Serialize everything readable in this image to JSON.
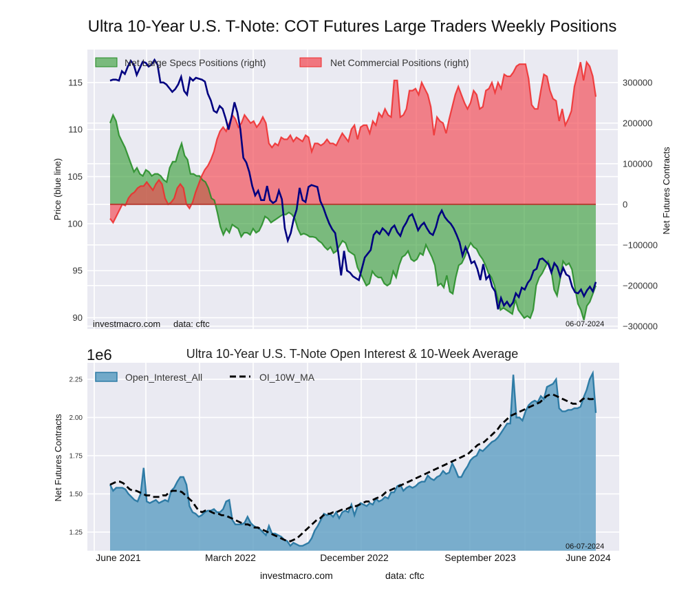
{
  "figure": {
    "title": "Ultra 10-Year U.S. T-Note: COT Futures Large Traders Weekly Positions",
    "footer_site": "investmacro.com",
    "footer_source": "data: cftc"
  },
  "colors": {
    "background_axes": "#eaeaf2",
    "grid": "#ffffff",
    "price_line": "#000080",
    "specs_fill": "#2e9a2e",
    "specs_line": "#228b22",
    "commercial_fill": "#f2454f",
    "commercial_line": "#ee2a2a",
    "oi_fill": "#5c9dc2",
    "oi_line": "#2f7ca6",
    "ma_line": "#000000"
  },
  "chart_data": [
    {
      "id": "positions",
      "type": "area",
      "title": "Ultra 10-Year U.S. T-Note: COT Futures Large Traders Weekly Positions",
      "ylabel_left": "Price (blue line)",
      "ylabel_right": "Net Futures Contracts",
      "ylim_left": [
        88.8,
        118.5
      ],
      "ylim_right": [
        -307000,
        381000
      ],
      "yticks_left": [
        90,
        95,
        100,
        105,
        110,
        115
      ],
      "yticks_right": [
        -300000,
        -200000,
        -100000,
        0,
        100000,
        200000,
        300000
      ],
      "ytick_labels_right": [
        "−300000",
        "−200000",
        "−100000",
        "0",
        "100000",
        "200000",
        "300000"
      ],
      "grid": true,
      "legend": {
        "placement": "top-left",
        "entries": [
          "Net Large Specs Positions (right)",
          "Net Commercial Positions (right)"
        ]
      },
      "annotations": {
        "source_left": "investmacro.com",
        "source_data": "data: cftc",
        "date": "06-07-2024"
      },
      "x_start": "2021-06-01",
      "x_end": "2024-06-04",
      "x_frequency": "weekly",
      "series": [
        {
          "name": "Price",
          "axis": "left",
          "values": [
            115.2,
            115.3,
            115.3,
            115.2,
            116.2,
            115.9,
            116.7,
            117.3,
            116.9,
            115.8,
            116.5,
            117.2,
            117.1,
            116.7,
            116.9,
            117.4,
            116.9,
            115.0,
            115.0,
            114.8,
            114.4,
            114.0,
            114.3,
            114.8,
            115.6,
            114.1,
            113.7,
            115.5,
            115.2,
            115.5,
            115.4,
            115.3,
            115.1,
            113.8,
            113.1,
            112.0,
            111.8,
            112.5,
            112.2,
            111.2,
            110.0,
            111.3,
            112.9,
            111.8,
            110.0,
            107.0,
            106.5,
            105.5,
            104.0,
            103.0,
            103.5,
            102.5,
            102.5,
            104.0,
            102.5,
            102.2,
            102.4,
            103.5,
            102.6,
            99.5,
            98.2,
            99.0,
            100.5,
            101.5,
            103.8,
            102.5,
            102.3,
            103.9,
            104.1,
            104.0,
            103.9,
            102.4,
            101.7,
            100.8,
            100.0,
            99.4,
            99.0,
            97.0,
            94.5,
            97.1,
            95.0,
            94.8,
            94.4,
            94.2,
            94.0,
            95.2,
            96.4,
            96.8,
            97.2,
            98.8,
            99.2,
            98.9,
            99.5,
            99.2,
            98.8,
            99.5,
            99.8,
            99.1,
            98.7,
            99.6,
            100.1,
            100.8,
            101.0,
            100.2,
            99.3,
            99.8,
            100.1,
            99.5,
            99.0,
            98.8,
            99.6,
            100.8,
            101.4,
            100.7,
            100.3,
            100.0,
            99.5,
            98.8,
            98.0,
            96.6,
            97.5,
            96.8,
            95.8,
            96.0,
            95.2,
            94.0,
            95.7,
            94.1,
            94.5,
            93.3,
            92.8,
            90.9,
            92.1,
            91.3,
            91.7,
            91.2,
            91.6,
            92.6,
            92.2,
            93.2,
            93.0,
            93.7,
            94.1,
            95.0,
            95.2,
            96.2,
            96.3,
            96.0,
            95.7,
            94.8,
            95.8,
            95.4,
            94.4,
            95.3,
            94.6,
            94.4,
            93.3,
            92.7,
            92.6,
            93.0,
            92.3,
            92.9,
            93.3,
            92.8,
            93.8
          ]
        },
        {
          "name": "Net Large Specs Positions (right)",
          "axis": "right",
          "values": [
            200000,
            220000,
            205000,
            170000,
            155000,
            140000,
            120000,
            100000,
            80000,
            90000,
            75000,
            70000,
            85000,
            80000,
            70000,
            75000,
            75000,
            70000,
            60000,
            55000,
            90000,
            105000,
            105000,
            130000,
            150000,
            120000,
            110000,
            75000,
            75000,
            70000,
            70000,
            60000,
            55000,
            40000,
            15000,
            10000,
            -20000,
            -55000,
            -75000,
            -60000,
            -70000,
            -50000,
            -55000,
            -60000,
            -80000,
            -70000,
            -70000,
            -75000,
            -60000,
            -70000,
            -65000,
            -50000,
            -30000,
            -35000,
            -45000,
            -40000,
            -35000,
            -30000,
            -25000,
            -25000,
            -20000,
            -25000,
            -35000,
            -60000,
            -75000,
            -72000,
            -75000,
            -80000,
            -80000,
            -82000,
            -90000,
            -95000,
            -105000,
            -112000,
            -105000,
            -120000,
            -115000,
            -102000,
            -90000,
            -95000,
            -115000,
            -120000,
            -125000,
            -155000,
            -170000,
            -185000,
            -200000,
            -195000,
            -165000,
            -175000,
            -180000,
            -180000,
            -195000,
            -200000,
            -195000,
            -165000,
            -180000,
            -150000,
            -130000,
            -125000,
            -115000,
            -135000,
            -140000,
            -135000,
            -120000,
            -125000,
            -100000,
            -115000,
            -130000,
            -150000,
            -200000,
            -195000,
            -205000,
            -175000,
            -215000,
            -220000,
            -180000,
            -150000,
            -145000,
            -130000,
            -110000,
            -95000,
            -105000,
            -110000,
            -125000,
            -135000,
            -150000,
            -170000,
            -180000,
            -200000,
            -230000,
            -260000,
            -255000,
            -260000,
            -265000,
            -270000,
            -235000,
            -260000,
            -270000,
            -280000,
            -275000,
            -280000,
            -260000,
            -200000,
            -180000,
            -170000,
            -155000,
            -140000,
            -160000,
            -210000,
            -225000,
            -185000,
            -140000,
            -150000,
            -145000,
            -160000,
            -205000,
            -245000,
            -260000,
            -285000,
            -250000,
            -240000,
            -220000,
            -200000
          ]
        },
        {
          "name": "Net Commercial Positions (right)",
          "axis": "right",
          "values": [
            -35000,
            -45000,
            -30000,
            -15000,
            0,
            -3000,
            15000,
            25000,
            30000,
            40000,
            45000,
            45000,
            55000,
            45000,
            35000,
            50000,
            60000,
            50000,
            15000,
            0,
            5000,
            15000,
            40000,
            50000,
            40000,
            0,
            -10000,
            5000,
            30000,
            50000,
            70000,
            85000,
            95000,
            110000,
            130000,
            160000,
            180000,
            190000,
            180000,
            200000,
            220000,
            210000,
            190000,
            200000,
            220000,
            210000,
            200000,
            205000,
            190000,
            200000,
            215000,
            200000,
            150000,
            140000,
            150000,
            145000,
            165000,
            160000,
            160000,
            170000,
            155000,
            165000,
            160000,
            155000,
            170000,
            165000,
            130000,
            150000,
            150000,
            145000,
            150000,
            160000,
            150000,
            150000,
            145000,
            160000,
            175000,
            165000,
            155000,
            185000,
            195000,
            160000,
            190000,
            195000,
            195000,
            175000,
            205000,
            195000,
            225000,
            215000,
            235000,
            220000,
            215000,
            305000,
            305000,
            215000,
            220000,
            235000,
            280000,
            280000,
            285000,
            270000,
            300000,
            285000,
            270000,
            240000,
            170000,
            215000,
            205000,
            200000,
            175000,
            210000,
            240000,
            270000,
            290000,
            270000,
            250000,
            235000,
            250000,
            280000,
            270000,
            235000,
            240000,
            280000,
            285000,
            300000,
            275000,
            300000,
            285000,
            320000,
            315000,
            315000,
            325000,
            340000,
            345000,
            345000,
            345000,
            310000,
            245000,
            235000,
            235000,
            280000,
            320000,
            315000,
            280000,
            260000,
            255000,
            205000,
            235000,
            195000,
            210000,
            230000,
            290000,
            320000,
            350000,
            305000,
            350000,
            340000,
            315000,
            265000
          ]
        }
      ]
    },
    {
      "id": "open-interest",
      "type": "area",
      "title": "Ultra 10-Year U.S. T-Note Open Interest & 10-Week Average",
      "ylabel": "Net Futures Contracts",
      "y_scale_label": "1e6",
      "ylim": [
        1.128,
        2.358
      ],
      "yticks": [
        1.25,
        1.5,
        1.75,
        2.0,
        2.25
      ],
      "ytick_labels": [
        "1.25",
        "1.50",
        "1.75",
        "2.00",
        "2.25"
      ],
      "xticks": [
        "June 2021",
        "March 2022",
        "December 2022",
        "September 2023",
        "June 2024"
      ],
      "xtick_dates": [
        "2021-06-01",
        "2022-03-01",
        "2022-12-01",
        "2023-09-01",
        "2024-06-01"
      ],
      "grid": true,
      "legend": {
        "placement": "top-left",
        "entries": [
          "Open_Interest_All",
          "OI_10W_MA"
        ]
      },
      "annotations": {
        "date": "06-07-2024"
      },
      "x_start": "2021-06-01",
      "x_end": "2024-06-04",
      "x_frequency": "weekly",
      "series": [
        {
          "name": "Open_Interest_All",
          "values": [
            1.56,
            1.52,
            1.54,
            1.54,
            1.54,
            1.53,
            1.5,
            1.48,
            1.46,
            1.45,
            1.5,
            1.67,
            1.45,
            1.44,
            1.45,
            1.46,
            1.44,
            1.45,
            1.46,
            1.45,
            1.52,
            1.54,
            1.58,
            1.61,
            1.61,
            1.56,
            1.42,
            1.38,
            1.37,
            1.35,
            1.36,
            1.38,
            1.39,
            1.39,
            1.4,
            1.38,
            1.38,
            1.4,
            1.45,
            1.46,
            1.33,
            1.3,
            1.3,
            1.3,
            1.31,
            1.35,
            1.31,
            1.29,
            1.28,
            1.27,
            1.25,
            1.23,
            1.29,
            1.24,
            1.24,
            1.23,
            1.22,
            1.2,
            1.19,
            1.16,
            1.18,
            1.17,
            1.16,
            1.16,
            1.17,
            1.18,
            1.21,
            1.26,
            1.29,
            1.33,
            1.37,
            1.36,
            1.37,
            1.35,
            1.38,
            1.34,
            1.38,
            1.39,
            1.38,
            1.43,
            1.36,
            1.42,
            1.44,
            1.43,
            1.42,
            1.44,
            1.43,
            1.47,
            1.45,
            1.46,
            1.48,
            1.47,
            1.51,
            1.51,
            1.55,
            1.56,
            1.52,
            1.54,
            1.55,
            1.54,
            1.55,
            1.57,
            1.58,
            1.58,
            1.62,
            1.6,
            1.59,
            1.61,
            1.62,
            1.65,
            1.63,
            1.64,
            1.7,
            1.66,
            1.61,
            1.61,
            1.65,
            1.68,
            1.72,
            1.74,
            1.75,
            1.79,
            1.78,
            1.8,
            1.82,
            1.84,
            1.85,
            1.87,
            1.9,
            1.93,
            1.96,
            1.96,
            2.28,
            2.0,
            2.0,
            1.98,
            2.04,
            2.08,
            2.1,
            2.11,
            2.1,
            2.14,
            2.12,
            2.2,
            2.21,
            2.22,
            2.25,
            2.06,
            2.04,
            2.04,
            2.05,
            2.05,
            2.06,
            2.06,
            2.07,
            2.13,
            2.18,
            2.25,
            2.29,
            2.03
          ]
        },
        {
          "name": "OI_10W_MA",
          "values": [
            1.56,
            1.57,
            1.58,
            1.58,
            1.57,
            1.55,
            1.53,
            1.52,
            1.52,
            1.51,
            1.5,
            1.49,
            1.49,
            1.48,
            1.48,
            1.48,
            1.49,
            1.49,
            1.51,
            1.52,
            1.52,
            1.52,
            1.51,
            1.49,
            1.47,
            1.45,
            1.42,
            1.39,
            1.38,
            1.39,
            1.39,
            1.38,
            1.37,
            1.37,
            1.36,
            1.36,
            1.35,
            1.34,
            1.33,
            1.32,
            1.31,
            1.3,
            1.3,
            1.29,
            1.28,
            1.28,
            1.27,
            1.26,
            1.25,
            1.24,
            1.23,
            1.22,
            1.21,
            1.2,
            1.19,
            1.19,
            1.2,
            1.21,
            1.23,
            1.25,
            1.27,
            1.29,
            1.31,
            1.33,
            1.34,
            1.36,
            1.37,
            1.37,
            1.38,
            1.38,
            1.39,
            1.4,
            1.4,
            1.41,
            1.42,
            1.42,
            1.43,
            1.44,
            1.45,
            1.45,
            1.46,
            1.47,
            1.48,
            1.49,
            1.51,
            1.52,
            1.53,
            1.54,
            1.55,
            1.56,
            1.57,
            1.58,
            1.59,
            1.6,
            1.61,
            1.62,
            1.63,
            1.64,
            1.65,
            1.66,
            1.67,
            1.68,
            1.69,
            1.7,
            1.71,
            1.72,
            1.73,
            1.74,
            1.75,
            1.76,
            1.78,
            1.8,
            1.82,
            1.83,
            1.84,
            1.86,
            1.88,
            1.9,
            1.92,
            1.95,
            1.97,
            1.99,
            2.01,
            2.02,
            2.03,
            2.04,
            2.05,
            2.06,
            2.07,
            2.08,
            2.09,
            2.1,
            2.12,
            2.14,
            2.15,
            2.15,
            2.14,
            2.13,
            2.12,
            2.11,
            2.1,
            2.09,
            2.09,
            2.1,
            2.12,
            2.13,
            2.12,
            2.12,
            2.13
          ]
        }
      ]
    }
  ]
}
